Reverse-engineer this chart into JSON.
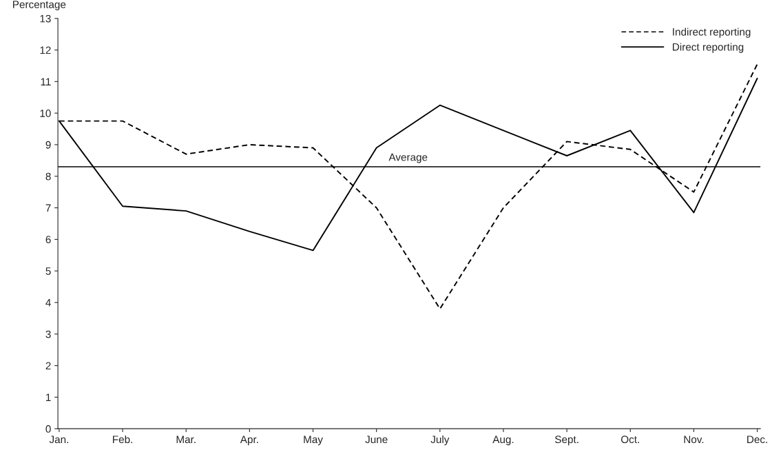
{
  "chart_data": {
    "type": "line",
    "ylabel": "Percentage",
    "categories": [
      "Jan.",
      "Feb.",
      "Mar.",
      "Apr.",
      "May",
      "June",
      "July",
      "Aug.",
      "Sept.",
      "Oct.",
      "Nov.",
      "Dec."
    ],
    "series": [
      {
        "name": "Indirect reporting",
        "color": "#000000",
        "line_style": "dashed",
        "values": [
          9.75,
          9.75,
          8.7,
          9.0,
          8.9,
          7.0,
          3.8,
          7.0,
          9.1,
          8.85,
          7.5,
          11.55
        ]
      },
      {
        "name": "Direct reporting",
        "color": "#000000",
        "line_style": "solid",
        "values": [
          9.75,
          7.05,
          6.9,
          6.25,
          5.65,
          8.9,
          10.25,
          9.45,
          8.65,
          9.45,
          6.85,
          11.1
        ]
      }
    ],
    "ylim": [
      0,
      13
    ],
    "yticks": [
      0,
      1,
      2,
      3,
      4,
      5,
      6,
      7,
      8,
      9,
      10,
      11,
      12,
      13
    ],
    "ref_lines": [
      {
        "axis": "y",
        "value": 8.3,
        "label": "Average",
        "color": "#000000"
      }
    ],
    "grid": false,
    "legend": "top right",
    "marker": "none"
  }
}
